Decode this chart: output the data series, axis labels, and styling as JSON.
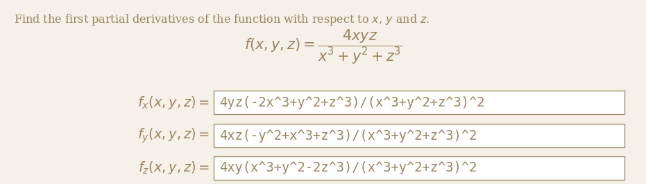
{
  "background_color": "#f5f0e8",
  "text_color": "#9b8560",
  "box_facecolor": "#ffffff",
  "box_edgecolor": "#a09070",
  "title": "Find the first partial derivatives of the function with respect to $x$, $y$ and $z$.",
  "function_display": "$f(x, y, z) = \\dfrac{4xyz}{x^3+y^2+z^3}$",
  "rows": [
    {
      "label": "$f_x(x, y, z) =$",
      "answer": "4yz(-2x^3+y^2+z^3)/(x^3+y^2+z^3)^2"
    },
    {
      "label": "$f_y(x, y, z) =$",
      "answer": "4xz(-y^2+x^3+z^3)/(x^3+y^2+z^3)^2"
    },
    {
      "label": "$f_z(x, y, z) =$",
      "answer": "4xy(x^3+y^2-2z^3)/(x^3+y^2+z^3)^2"
    }
  ],
  "title_fontsize": 11.5,
  "func_fontsize": 15,
  "label_fontsize": 14,
  "answer_fontsize": 13.5,
  "fig_width": 9.31,
  "fig_height": 2.66,
  "dpi": 100
}
